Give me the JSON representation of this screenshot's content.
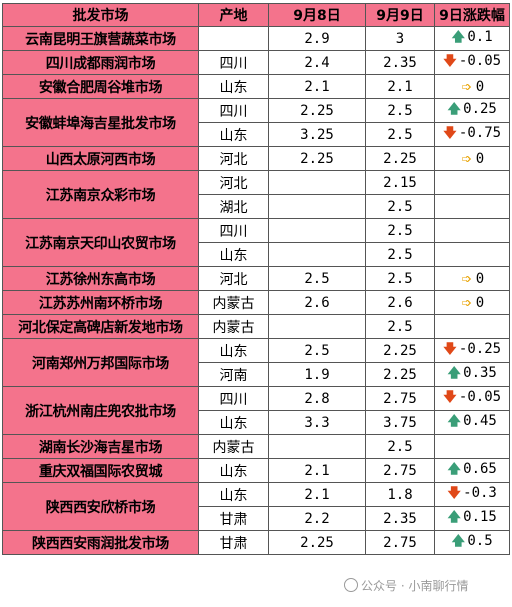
{
  "headers": {
    "market": "批发市场",
    "origin": "产地",
    "sep8": "9月8日",
    "sep9": "9月9日",
    "change": "9日涨跌幅"
  },
  "rows": [
    {
      "market": "云南昆明王旗营蔬菜市场",
      "origin": "",
      "sep8": "2.9",
      "sep9": "3",
      "trend": "up",
      "change": "0.1"
    },
    {
      "market": "四川成都雨润市场",
      "origin": "四川",
      "sep8": "2.4",
      "sep9": "2.35",
      "trend": "down",
      "change": "-0.05"
    },
    {
      "market": "安徽合肥周谷堆市场",
      "origin": "山东",
      "sep8": "2.1",
      "sep9": "2.1",
      "trend": "flat",
      "change": "0"
    },
    {
      "market": "安徽蚌埠海吉星批发市场",
      "origin": "四川",
      "sep8": "2.25",
      "sep9": "2.5",
      "trend": "up",
      "change": "0.25"
    },
    {
      "market": "",
      "origin": "山东",
      "sep8": "3.25",
      "sep9": "2.5",
      "trend": "down",
      "change": "-0.75"
    },
    {
      "market": "山西太原河西市场",
      "origin": "河北",
      "sep8": "2.25",
      "sep9": "2.25",
      "trend": "flat",
      "change": "0"
    },
    {
      "market": "江苏南京众彩市场",
      "origin": "河北",
      "sep8": "",
      "sep9": "2.15",
      "trend": "",
      "change": ""
    },
    {
      "market": "",
      "origin": "湖北",
      "sep8": "",
      "sep9": "2.5",
      "trend": "",
      "change": ""
    },
    {
      "market": "江苏南京天印山农贸市场",
      "origin": "四川",
      "sep8": "",
      "sep9": "2.5",
      "trend": "",
      "change": ""
    },
    {
      "market": "",
      "origin": "山东",
      "sep8": "",
      "sep9": "2.5",
      "trend": "",
      "change": ""
    },
    {
      "market": "江苏徐州东高市场",
      "origin": "河北",
      "sep8": "2.5",
      "sep9": "2.5",
      "trend": "flat",
      "change": "0"
    },
    {
      "market": "江苏苏州南环桥市场",
      "origin": "内蒙古",
      "sep8": "2.6",
      "sep9": "2.6",
      "trend": "flat",
      "change": "0"
    },
    {
      "market": "河北保定高碑店新发地市场",
      "origin": "内蒙古",
      "sep8": "",
      "sep9": "2.5",
      "trend": "",
      "change": ""
    },
    {
      "market": "河南郑州万邦国际市场",
      "origin": "山东",
      "sep8": "2.5",
      "sep9": "2.25",
      "trend": "down",
      "change": "-0.25"
    },
    {
      "market": "",
      "origin": "河南",
      "sep8": "1.9",
      "sep9": "2.25",
      "trend": "up",
      "change": "0.35"
    },
    {
      "market": "浙江杭州南庄兜农批市场",
      "origin": "四川",
      "sep8": "2.8",
      "sep9": "2.75",
      "trend": "down",
      "change": "-0.05"
    },
    {
      "market": "",
      "origin": "山东",
      "sep8": "3.3",
      "sep9": "3.75",
      "trend": "up",
      "change": "0.45"
    },
    {
      "market": "湖南长沙海吉星市场",
      "origin": "内蒙古",
      "sep8": "",
      "sep9": "2.5",
      "trend": "",
      "change": ""
    },
    {
      "market": "重庆双福国际农贸城",
      "origin": "山东",
      "sep8": "2.1",
      "sep9": "2.75",
      "trend": "up",
      "change": "0.65"
    },
    {
      "market": "陕西西安欣桥市场",
      "origin": "山东",
      "sep8": "2.1",
      "sep9": "1.8",
      "trend": "down",
      "change": "-0.3"
    },
    {
      "market": "",
      "origin": "甘肃",
      "sep8": "2.2",
      "sep9": "2.35",
      "trend": "up",
      "change": "0.15"
    },
    {
      "market": "陕西西安雨润批发市场",
      "origin": "甘肃",
      "sep8": "2.25",
      "sep9": "2.75",
      "trend": "up",
      "change": "0.5"
    }
  ],
  "arrows": {
    "up": "🡅",
    "down": "🡇",
    "flat": "➩"
  },
  "colors": {
    "header_bg": "#f4738c",
    "market_bg": "#f4738c",
    "up": "#3a9e78",
    "down": "#e04818",
    "flat": "#e8a200"
  },
  "watermark": "公众号 · 小南聊行情"
}
